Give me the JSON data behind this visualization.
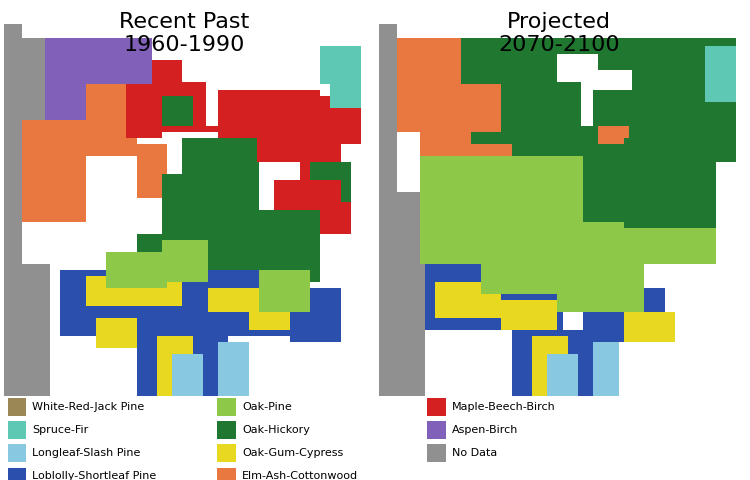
{
  "title_left": "Recent Past\n1960-1990",
  "title_right": "Projected\n2070-2100",
  "title_fontsize": 16,
  "background_color": "#ffffff",
  "legend_items_col1": [
    {
      "label": "White-Red-Jack Pine",
      "color": "#9b8755"
    },
    {
      "label": "Spruce-Fir",
      "color": "#5ec8b4"
    },
    {
      "label": "Longleaf-Slash Pine",
      "color": "#88c8e0"
    },
    {
      "label": "Loblolly-Shortleaf Pine",
      "color": "#2b4fad"
    }
  ],
  "legend_items_col2": [
    {
      "label": "Oak-Pine",
      "color": "#8dc848"
    },
    {
      "label": "Oak-Hickory",
      "color": "#207830"
    },
    {
      "label": "Oak-Gum-Cypress",
      "color": "#e8d820"
    },
    {
      "label": "Elm-Ash-Cottonwood",
      "color": "#e87840"
    }
  ],
  "legend_items_col3": [
    {
      "label": "Maple-Beech-Birch",
      "color": "#d42020"
    },
    {
      "label": "Aspen-Birch",
      "color": "#8060b8"
    },
    {
      "label": "No Data",
      "color": "#909090"
    }
  ],
  "fig_width": 7.5,
  "fig_height": 4.8,
  "dpi": 100
}
